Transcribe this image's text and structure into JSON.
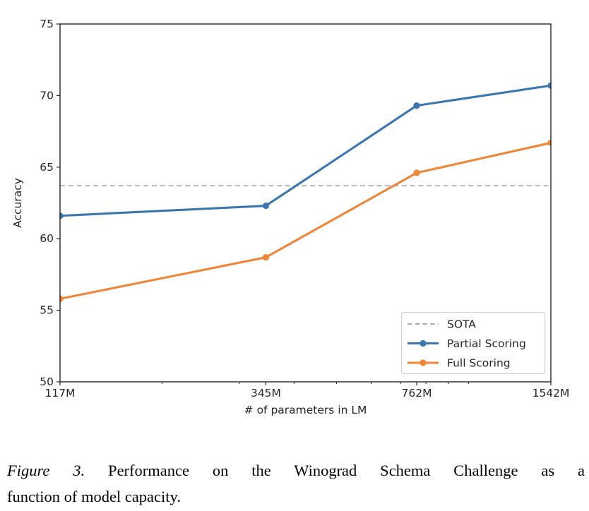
{
  "chart_data": {
    "type": "line",
    "title": "",
    "xlabel": "# of parameters in LM",
    "ylabel": "Accuracy",
    "x_scale": "log",
    "x_values": [
      117,
      345,
      762,
      1542
    ],
    "x_tick_labels": [
      "117M",
      "345M",
      "762M",
      "1542M"
    ],
    "x_minor_ticks": [
      200,
      300,
      400,
      500,
      600,
      700,
      800,
      900,
      1000
    ],
    "y_ticks": [
      50,
      55,
      60,
      65,
      70,
      75
    ],
    "ylim": [
      50,
      75
    ],
    "grid": false,
    "legend_position": "lower right",
    "series": [
      {
        "name": "SOTA",
        "kind": "hline",
        "value": 63.7,
        "color": "#a3a3a3",
        "dash": true,
        "marker": "none"
      },
      {
        "name": "Partial Scoring",
        "kind": "line",
        "values": [
          61.6,
          62.3,
          69.3,
          70.7
        ],
        "color": "#3b77af",
        "dash": false,
        "marker": "circle"
      },
      {
        "name": "Full Scoring",
        "kind": "line",
        "values": [
          55.8,
          58.7,
          64.6,
          66.7
        ],
        "color": "#ef8536",
        "dash": false,
        "marker": "circle"
      }
    ],
    "axis_color": "#262626",
    "legend_border_color": "#d2d2d2"
  },
  "caption": {
    "label": "Figure 3.",
    "line1": " Performance on the Winograd Schema Challenge as a",
    "line2": "function of model capacity."
  }
}
